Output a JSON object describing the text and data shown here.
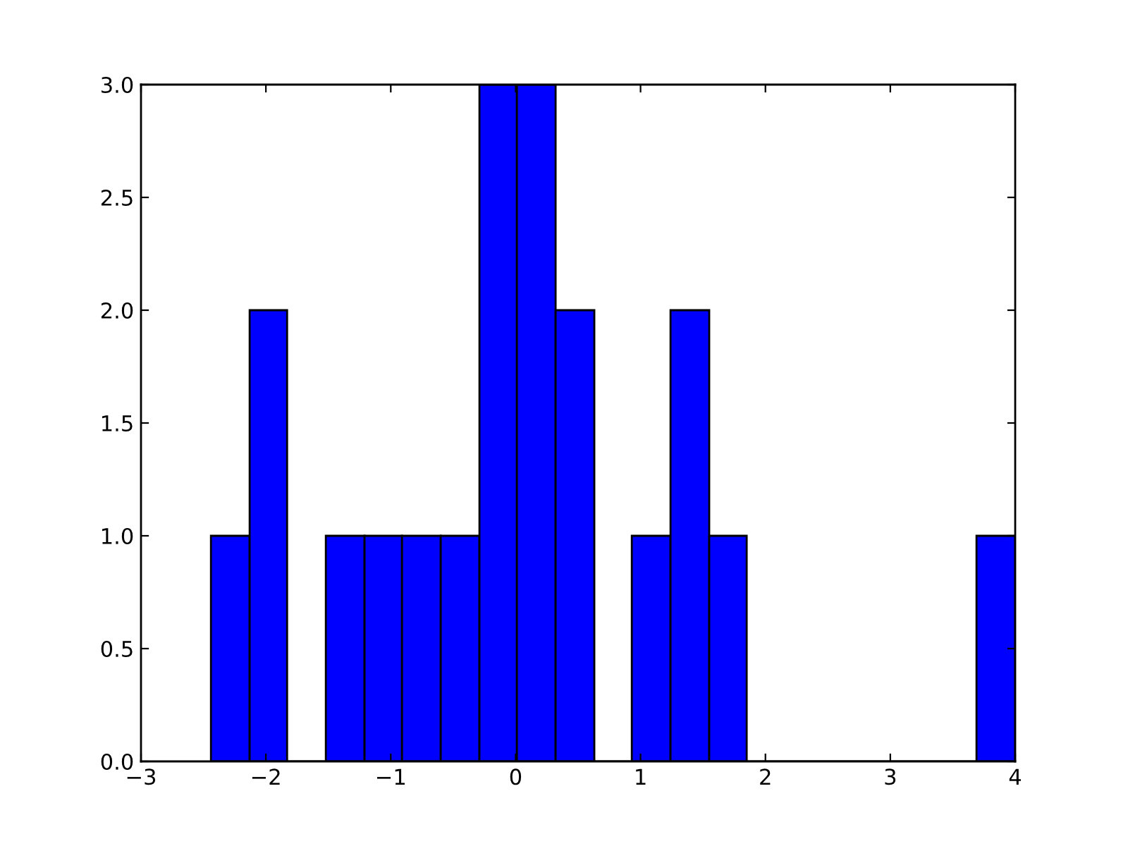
{
  "chart_data": {
    "type": "histogram",
    "bins": [
      -2.44,
      -2.13,
      -1.83,
      -1.52,
      -1.21,
      -0.91,
      -0.6,
      -0.29,
      0.01,
      0.32,
      0.63,
      0.93,
      1.24,
      1.55,
      1.85,
      3.69,
      4.0
    ],
    "values": [
      1,
      2,
      0,
      1,
      1,
      1,
      1,
      3,
      3,
      2,
      0,
      1,
      2,
      1,
      0,
      1
    ],
    "color": "#0000ff",
    "xlim": [
      -3,
      4
    ],
    "xticks": [
      {
        "value": -3,
        "label": "−3"
      },
      {
        "value": -2,
        "label": "−2"
      },
      {
        "value": -1,
        "label": "−1"
      },
      {
        "value": 0,
        "label": "0"
      },
      {
        "value": 1,
        "label": "1"
      },
      {
        "value": 2,
        "label": "2"
      },
      {
        "value": 3,
        "label": "3"
      },
      {
        "value": 4,
        "label": "4"
      }
    ],
    "ylim": [
      0,
      3
    ],
    "yticks": [
      {
        "value": 0,
        "label": "0.0"
      },
      {
        "value": 0.5,
        "label": "0.5"
      },
      {
        "value": 1,
        "label": "1.0"
      },
      {
        "value": 1.5,
        "label": "1.5"
      },
      {
        "value": 2,
        "label": "2.0"
      },
      {
        "value": 2.5,
        "label": "2.5"
      },
      {
        "value": 3,
        "label": "3.0"
      }
    ],
    "grid": false
  }
}
